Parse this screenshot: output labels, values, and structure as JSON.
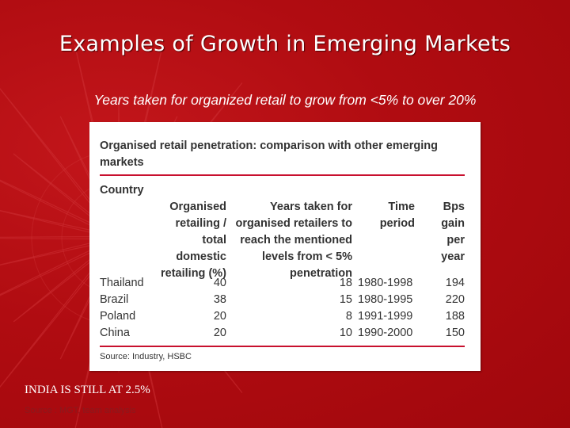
{
  "slide": {
    "title": "Examples of Growth in Emerging Markets",
    "subtitle": "Years taken for organized retail to grow from <5% to over 20%",
    "note": "INDIA IS STILL AT 2.5%",
    "footer_source": "Source : MGT, team analysis",
    "colors": {
      "background": "#b00b10",
      "accent_rule": "#c8102e",
      "text": "#ffffff"
    }
  },
  "table": {
    "title": "Organised retail penetration: comparison with other emerging markets",
    "columns": [
      "Country",
      "Organised retailing / total domestic retailing (%)",
      "Years taken for organised retailers to reach the mentioned levels from < 5% penetration",
      "Time period",
      "Bps gain per year"
    ],
    "rows": [
      [
        "Thailand",
        "40",
        "18",
        "1980-1998",
        "194"
      ],
      [
        "Brazil",
        "38",
        "15",
        "1980-1995",
        "220"
      ],
      [
        "Poland",
        "20",
        "8",
        "1991-1999",
        "188"
      ],
      [
        "China",
        "20",
        "10",
        "1990-2000",
        "150"
      ]
    ],
    "source": "Source: Industry, HSBC"
  }
}
